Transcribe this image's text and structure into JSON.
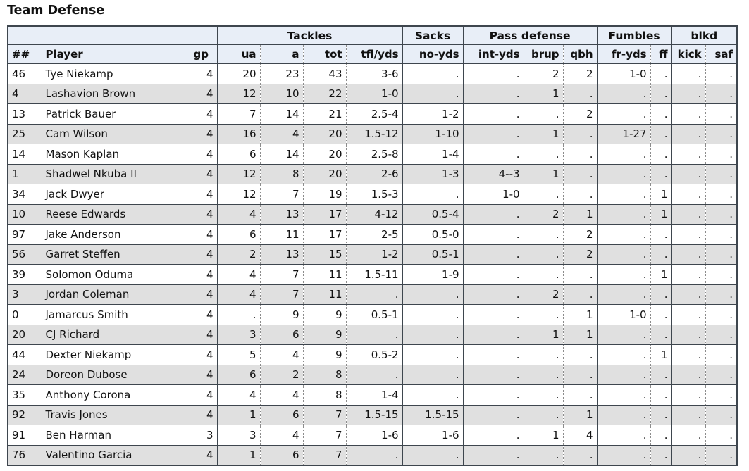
{
  "title": "Team Defense",
  "colors": {
    "header_bg": "#e8eef7",
    "stripe_bg": "#e0e0e0",
    "border_dark": "#3e464e",
    "text": "#111111"
  },
  "table": {
    "groups": [
      {
        "label": "",
        "span": 3
      },
      {
        "label": "Tackles",
        "span": 4
      },
      {
        "label": "Sacks",
        "span": 1
      },
      {
        "label": "Pass defense",
        "span": 3
      },
      {
        "label": "Fumbles",
        "span": 2
      },
      {
        "label": "blkd",
        "span": 2
      }
    ],
    "columns": [
      "##",
      "Player",
      "gp",
      "ua",
      "a",
      "tot",
      "tfl/yds",
      "no-yds",
      "int-yds",
      "brup",
      "qbh",
      "fr-yds",
      "ff",
      "kick",
      "saf"
    ],
    "rows": [
      [
        "46",
        "Tye Niekamp",
        "4",
        "20",
        "23",
        "43",
        "3-6",
        ".",
        ".",
        "2",
        "2",
        "1-0",
        ".",
        ".",
        "."
      ],
      [
        "4",
        "Lashavion Brown",
        "4",
        "12",
        "10",
        "22",
        "1-0",
        ".",
        ".",
        "1",
        ".",
        ".",
        ".",
        ".",
        "."
      ],
      [
        "13",
        "Patrick Bauer",
        "4",
        "7",
        "14",
        "21",
        "2.5-4",
        "1-2",
        ".",
        ".",
        "2",
        ".",
        ".",
        ".",
        "."
      ],
      [
        "25",
        "Cam Wilson",
        "4",
        "16",
        "4",
        "20",
        "1.5-12",
        "1-10",
        ".",
        "1",
        ".",
        "1-27",
        ".",
        ".",
        "."
      ],
      [
        "14",
        "Mason Kaplan",
        "4",
        "6",
        "14",
        "20",
        "2.5-8",
        "1-4",
        ".",
        ".",
        ".",
        ".",
        ".",
        ".",
        "."
      ],
      [
        "1",
        "Shadwel Nkuba II",
        "4",
        "12",
        "8",
        "20",
        "2-6",
        "1-3",
        "4--3",
        "1",
        ".",
        ".",
        ".",
        ".",
        "."
      ],
      [
        "34",
        "Jack Dwyer",
        "4",
        "12",
        "7",
        "19",
        "1.5-3",
        ".",
        "1-0",
        ".",
        ".",
        ".",
        "1",
        ".",
        "."
      ],
      [
        "10",
        "Reese Edwards",
        "4",
        "4",
        "13",
        "17",
        "4-12",
        "0.5-4",
        ".",
        "2",
        "1",
        ".",
        "1",
        ".",
        "."
      ],
      [
        "97",
        "Jake Anderson",
        "4",
        "6",
        "11",
        "17",
        "2-5",
        "0.5-0",
        ".",
        ".",
        "2",
        ".",
        ".",
        ".",
        "."
      ],
      [
        "56",
        "Garret Steffen",
        "4",
        "2",
        "13",
        "15",
        "1-2",
        "0.5-1",
        ".",
        ".",
        "2",
        ".",
        ".",
        ".",
        "."
      ],
      [
        "39",
        "Solomon Oduma",
        "4",
        "4",
        "7",
        "11",
        "1.5-11",
        "1-9",
        ".",
        ".",
        ".",
        ".",
        "1",
        ".",
        "."
      ],
      [
        "3",
        "Jordan Coleman",
        "4",
        "4",
        "7",
        "11",
        ".",
        ".",
        ".",
        "2",
        ".",
        ".",
        ".",
        ".",
        "."
      ],
      [
        "0",
        "Jamarcus Smith",
        "4",
        ".",
        "9",
        "9",
        "0.5-1",
        ".",
        ".",
        ".",
        "1",
        "1-0",
        ".",
        ".",
        "."
      ],
      [
        "20",
        "CJ Richard",
        "4",
        "3",
        "6",
        "9",
        ".",
        ".",
        ".",
        "1",
        "1",
        ".",
        ".",
        ".",
        "."
      ],
      [
        "44",
        "Dexter Niekamp",
        "4",
        "5",
        "4",
        "9",
        "0.5-2",
        ".",
        ".",
        ".",
        ".",
        ".",
        "1",
        ".",
        "."
      ],
      [
        "24",
        "Doreon Dubose",
        "4",
        "6",
        "2",
        "8",
        ".",
        ".",
        ".",
        ".",
        ".",
        ".",
        ".",
        ".",
        "."
      ],
      [
        "35",
        "Anthony Corona",
        "4",
        "4",
        "4",
        "8",
        "1-4",
        ".",
        ".",
        ".",
        ".",
        ".",
        ".",
        ".",
        "."
      ],
      [
        "92",
        "Travis Jones",
        "4",
        "1",
        "6",
        "7",
        "1.5-15",
        "1.5-15",
        ".",
        ".",
        "1",
        ".",
        ".",
        ".",
        "."
      ],
      [
        "91",
        "Ben Harman",
        "3",
        "3",
        "4",
        "7",
        "1-6",
        "1-6",
        ".",
        "1",
        "4",
        ".",
        ".",
        ".",
        "."
      ],
      [
        "76",
        "Valentino Garcia",
        "4",
        "1",
        "6",
        "7",
        ".",
        ".",
        ".",
        ".",
        ".",
        ".",
        ".",
        ".",
        "."
      ]
    ]
  }
}
